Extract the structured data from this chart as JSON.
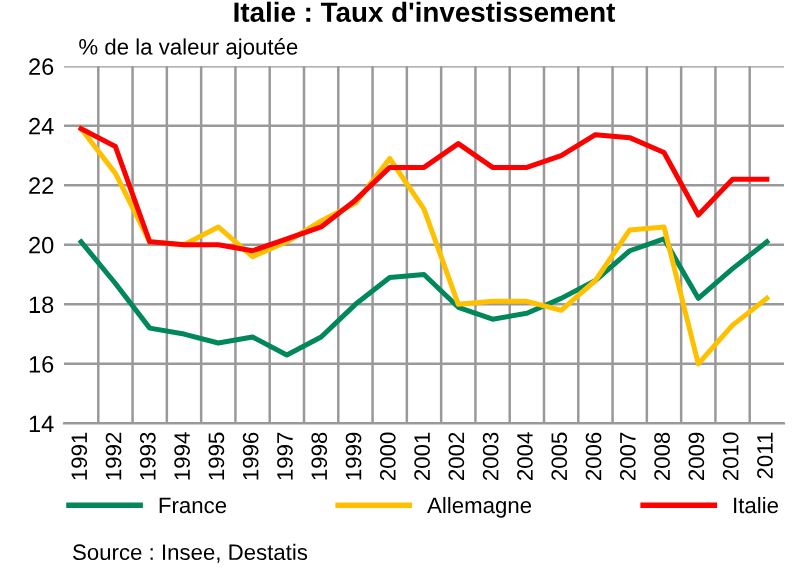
{
  "chart_data": {
    "type": "line",
    "title": "Italie : Taux d'investissement",
    "ylabel": "% de la valeur ajoutée",
    "categories": [
      "1991",
      "1992",
      "1993",
      "1994",
      "1995",
      "1996",
      "1997",
      "1998",
      "1999",
      "2000",
      "2001",
      "2002",
      "2003",
      "2004",
      "2005",
      "2006",
      "2007",
      "2008",
      "2009",
      "2010",
      "2011"
    ],
    "series": [
      {
        "name": "France",
        "color": "#00875a",
        "values": [
          20.1,
          18.7,
          17.2,
          17.0,
          16.7,
          16.9,
          16.3,
          16.9,
          18.0,
          18.9,
          19.0,
          17.9,
          17.5,
          17.7,
          18.2,
          18.8,
          19.8,
          20.2,
          18.2,
          19.2,
          20.1
        ]
      },
      {
        "name": "Allemagne",
        "color": "#ffc000",
        "values": [
          23.9,
          22.4,
          20.1,
          20.0,
          20.6,
          19.6,
          20.1,
          20.8,
          21.4,
          22.9,
          21.2,
          18.0,
          18.1,
          18.1,
          17.8,
          18.8,
          20.5,
          20.6,
          16.0,
          17.3,
          18.2
        ]
      },
      {
        "name": "Italie",
        "color": "#ff0000",
        "values": [
          23.9,
          23.3,
          20.1,
          20.0,
          20.0,
          19.8,
          20.2,
          20.6,
          21.5,
          22.6,
          22.6,
          23.4,
          22.6,
          22.6,
          23.0,
          23.7,
          23.6,
          23.1,
          21.0,
          22.2,
          22.2
        ]
      }
    ],
    "ylim": [
      14,
      26
    ],
    "yticks": [
      14,
      16,
      18,
      20,
      22,
      24,
      26
    ],
    "grid": true,
    "legend": "bottom",
    "annotations": [
      "Source : Insee, Destatis"
    ]
  }
}
